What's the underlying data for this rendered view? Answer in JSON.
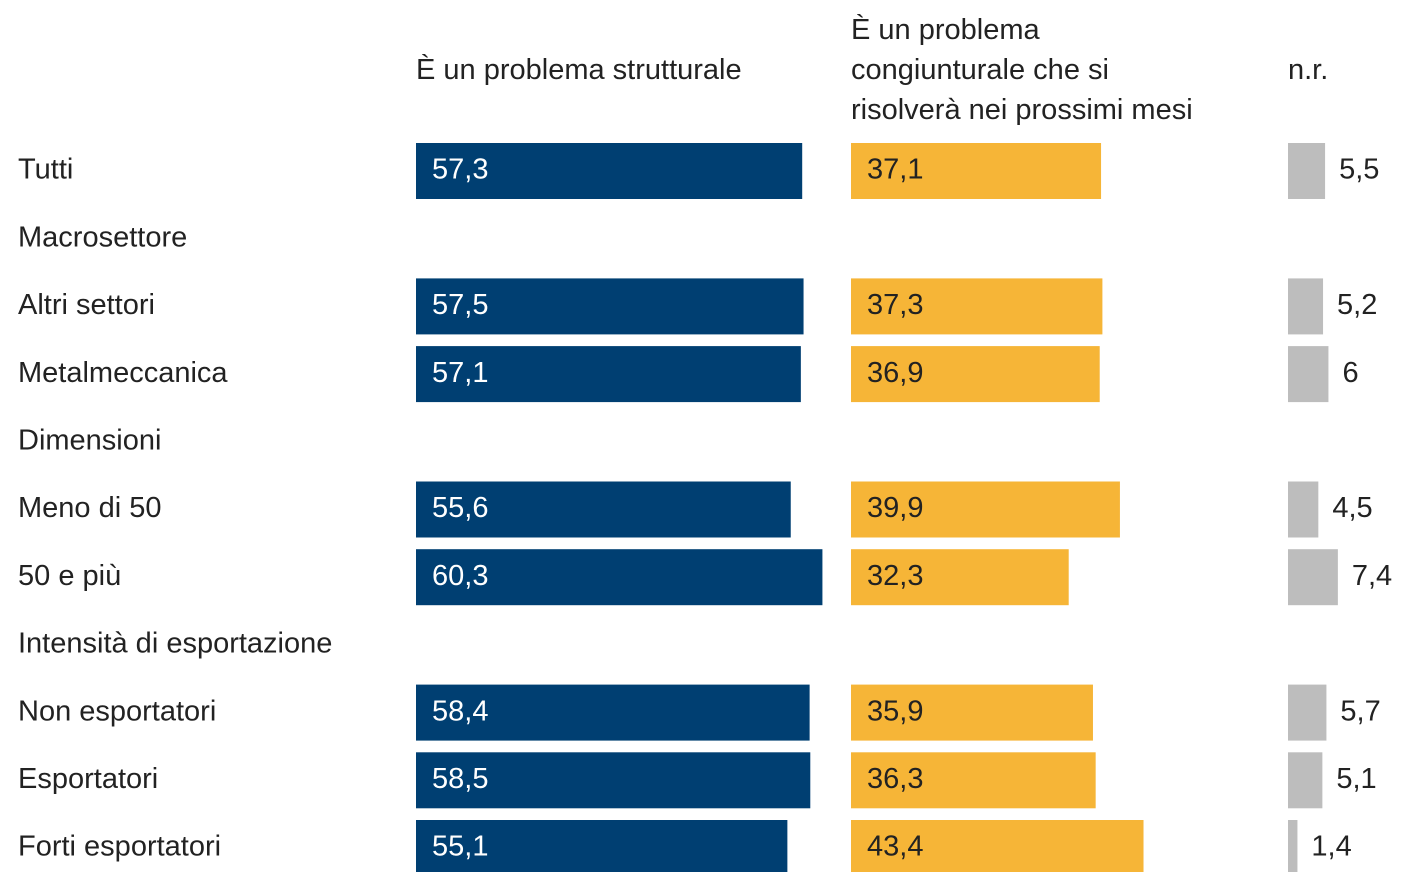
{
  "chart_data": {
    "type": "bar",
    "categories": [
      "Tutti",
      "Macrosettore",
      "Altri settori",
      "Metalmeccanica",
      "Dimensioni",
      "Meno di 50",
      "50 e più",
      "Intensità di esportazione",
      "Non esportatori",
      "Esportatori",
      "Forti esportatori"
    ],
    "series": [
      {
        "name": "È un problema strutturale",
        "color": "#003f72",
        "values": [
          57.3,
          null,
          57.5,
          57.1,
          null,
          55.6,
          60.3,
          null,
          58.4,
          58.5,
          55.1
        ],
        "value_labels": [
          "57,3",
          null,
          "57,5",
          "57,1",
          null,
          "55,6",
          "60,3",
          null,
          "58,4",
          "58,5",
          "55,1"
        ]
      },
      {
        "name": "È un problema\ncongiunturale che si\nrisolverà nei prossimi mesi",
        "color": "#f6b537",
        "values": [
          37.1,
          null,
          37.3,
          36.9,
          null,
          39.9,
          32.3,
          null,
          35.9,
          36.3,
          43.4
        ],
        "value_labels": [
          "37,1",
          null,
          "37,3",
          "36,9",
          null,
          "39,9",
          "32,3",
          null,
          "35,9",
          "36,3",
          "43,4"
        ]
      },
      {
        "name": "n.r.",
        "color": "#bdbdbd",
        "values": [
          5.5,
          null,
          5.2,
          6,
          null,
          4.5,
          7.4,
          null,
          5.7,
          5.1,
          1.4
        ],
        "value_labels": [
          "5,5",
          null,
          "5,2",
          null,
          null,
          "4,5",
          "7,4",
          null,
          "5,7",
          "5,1",
          "1,4"
        ]
      }
    ]
  }
}
